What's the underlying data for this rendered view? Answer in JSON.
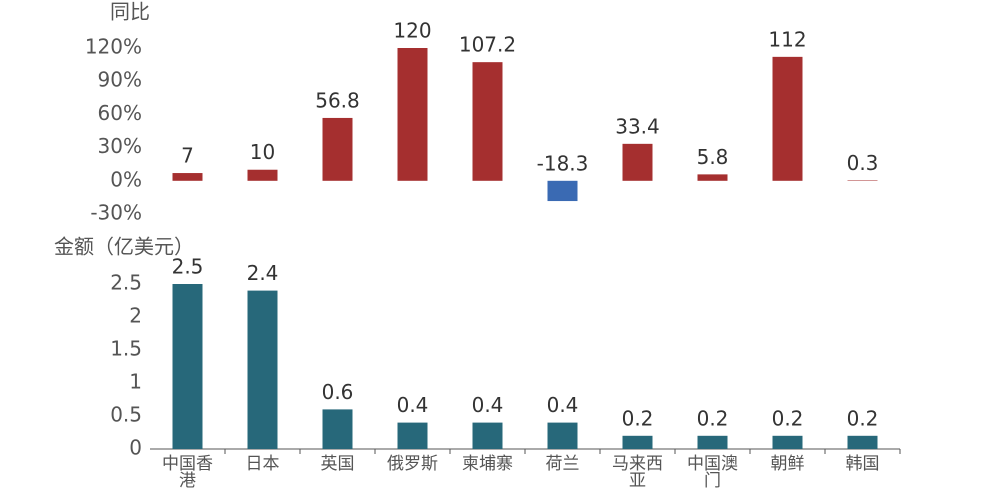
{
  "chart_data": [
    {
      "type": "bar",
      "title": "同比",
      "values": [
        7,
        10,
        56.8,
        120,
        107.2,
        -18.3,
        33.4,
        5.8,
        112,
        0.3
      ],
      "color": "#a52f2f",
      "negative_color": "#3a6ab3",
      "ylim": [
        -30,
        120
      ],
      "yticks": [
        {
          "value": -30,
          "label": "-30%"
        },
        {
          "value": 0,
          "label": "0%"
        },
        {
          "value": 30,
          "label": "30%"
        },
        {
          "value": 60,
          "label": "60%"
        },
        {
          "value": 90,
          "label": "90%"
        },
        {
          "value": 120,
          "label": "120%"
        }
      ]
    },
    {
      "type": "bar",
      "title": "金额（亿美元）",
      "categories": [
        "中国香港",
        "日本",
        "英国",
        "俄罗斯",
        "柬埔寨",
        "荷兰",
        "马来西亚",
        "中国澳门",
        "朝鲜",
        "韩国"
      ],
      "values": [
        2.5,
        2.4,
        0.6,
        0.4,
        0.4,
        0.4,
        0.2,
        0.2,
        0.2,
        0.2
      ],
      "color": "#27687a",
      "ylim": [
        0,
        2.5
      ],
      "yticks": [
        0,
        0.5,
        1,
        1.5,
        2,
        2.5
      ]
    }
  ]
}
